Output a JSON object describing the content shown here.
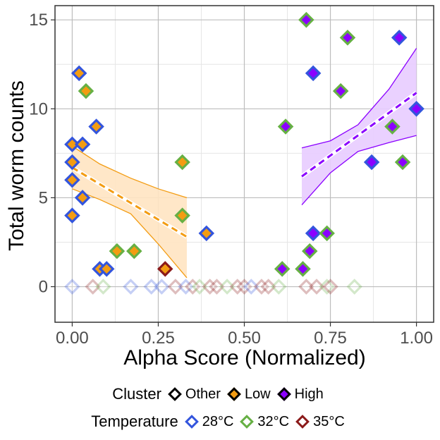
{
  "chart_data": {
    "type": "scatter",
    "xlabel": "Alpha Score (Normalized)",
    "ylabel": "Total worm counts",
    "xlim": [
      -0.05,
      1.05
    ],
    "ylim": [
      -2,
      15.8
    ],
    "x_ticks": [
      "0.00",
      "0.25",
      "0.50",
      "0.75",
      "1.00"
    ],
    "y_ticks": [
      "0",
      "5",
      "10",
      "15"
    ],
    "grid": true,
    "legend_position": "bottom",
    "legends": [
      {
        "title": "Cluster",
        "items": [
          {
            "label": "Other",
            "fill": "#ffffff"
          },
          {
            "label": "Low",
            "fill": "#f39c12"
          },
          {
            "label": "High",
            "fill": "#8b00ff"
          }
        ]
      },
      {
        "title": "Temperature",
        "items": [
          {
            "label": "28°C",
            "edge": "#3355dd"
          },
          {
            "label": "32°C",
            "edge": "#66b044"
          },
          {
            "label": "35°C",
            "edge": "#8b1a1a"
          }
        ]
      }
    ],
    "colors": {
      "Low": "#f39c12",
      "High": "#8b00ff",
      "Other": "#ffffff",
      "28°C": "#3355dd",
      "32°C": "#66b044",
      "35°C": "#8b1a1a"
    },
    "trends": [
      {
        "cluster": "Low",
        "x": [
          0,
          0.333
        ],
        "fit": [
          6.7,
          2.8
        ],
        "ci_x": [
          0,
          0.08,
          0.17,
          0.25,
          0.333
        ],
        "ci_upper": [
          7.9,
          6.9,
          6.1,
          5.5,
          5.0
        ],
        "ci_lower": [
          5.5,
          4.9,
          4.1,
          2.4,
          0.5
        ]
      },
      {
        "cluster": "High",
        "x": [
          0.667,
          1.0
        ],
        "fit": [
          6.2,
          10.9
        ],
        "ci_x": [
          0.667,
          0.75,
          0.83,
          0.92,
          1.0
        ],
        "ci_upper": [
          7.8,
          8.2,
          9.1,
          11.1,
          13.4
        ],
        "ci_lower": [
          4.6,
          6.4,
          7.6,
          8.1,
          8.5
        ]
      }
    ],
    "points": [
      {
        "x": 0.02,
        "y": 12,
        "cluster": "Low",
        "temp": "28°C"
      },
      {
        "x": 0.04,
        "y": 11,
        "cluster": "Low",
        "temp": "32°C"
      },
      {
        "x": 0.07,
        "y": 9,
        "cluster": "Low",
        "temp": "28°C"
      },
      {
        "x": 0.0,
        "y": 8,
        "cluster": "Low",
        "temp": "28°C"
      },
      {
        "x": 0.03,
        "y": 8,
        "cluster": "Low",
        "temp": "28°C"
      },
      {
        "x": 0.0,
        "y": 7,
        "cluster": "Low",
        "temp": "28°C"
      },
      {
        "x": 0.0,
        "y": 6,
        "cluster": "Low",
        "temp": "28°C"
      },
      {
        "x": 0.03,
        "y": 5,
        "cluster": "Low",
        "temp": "28°C"
      },
      {
        "x": 0.0,
        "y": 4,
        "cluster": "Low",
        "temp": "28°C"
      },
      {
        "x": 0.32,
        "y": 7,
        "cluster": "Low",
        "temp": "32°C"
      },
      {
        "x": 0.32,
        "y": 4,
        "cluster": "Low",
        "temp": "32°C"
      },
      {
        "x": 0.39,
        "y": 3,
        "cluster": "Low",
        "temp": "28°C"
      },
      {
        "x": 0.13,
        "y": 2,
        "cluster": "Low",
        "temp": "32°C"
      },
      {
        "x": 0.18,
        "y": 2,
        "cluster": "Low",
        "temp": "32°C"
      },
      {
        "x": 0.08,
        "y": 1,
        "cluster": "Low",
        "temp": "28°C"
      },
      {
        "x": 0.1,
        "y": 1,
        "cluster": "Low",
        "temp": "28°C"
      },
      {
        "x": 0.27,
        "y": 1,
        "cluster": "Low",
        "temp": "35°C"
      },
      {
        "x": 0.68,
        "y": 15,
        "cluster": "High",
        "temp": "32°C"
      },
      {
        "x": 0.8,
        "y": 14,
        "cluster": "High",
        "temp": "32°C"
      },
      {
        "x": 0.95,
        "y": 14,
        "cluster": "High",
        "temp": "28°C"
      },
      {
        "x": 0.7,
        "y": 12,
        "cluster": "High",
        "temp": "28°C"
      },
      {
        "x": 0.78,
        "y": 11,
        "cluster": "High",
        "temp": "32°C"
      },
      {
        "x": 1.0,
        "y": 10,
        "cluster": "High",
        "temp": "28°C"
      },
      {
        "x": 0.62,
        "y": 9,
        "cluster": "High",
        "temp": "32°C"
      },
      {
        "x": 0.93,
        "y": 9,
        "cluster": "High",
        "temp": "32°C"
      },
      {
        "x": 0.87,
        "y": 7,
        "cluster": "High",
        "temp": "28°C"
      },
      {
        "x": 0.96,
        "y": 7,
        "cluster": "High",
        "temp": "32°C"
      },
      {
        "x": 0.7,
        "y": 3,
        "cluster": "High",
        "temp": "28°C"
      },
      {
        "x": 0.74,
        "y": 3,
        "cluster": "High",
        "temp": "32°C"
      },
      {
        "x": 0.69,
        "y": 2,
        "cluster": "High",
        "temp": "32°C"
      },
      {
        "x": 0.61,
        "y": 1,
        "cluster": "High",
        "temp": "32°C"
      },
      {
        "x": 0.67,
        "y": 1,
        "cluster": "High",
        "temp": "32°C"
      },
      {
        "x": 0.0,
        "y": 0,
        "cluster": "Other",
        "temp": "28°C"
      },
      {
        "x": 0.06,
        "y": 0,
        "cluster": "Other",
        "temp": "35°C"
      },
      {
        "x": 0.09,
        "y": 0,
        "cluster": "Other",
        "temp": "32°C"
      },
      {
        "x": 0.17,
        "y": 0,
        "cluster": "Other",
        "temp": "28°C"
      },
      {
        "x": 0.23,
        "y": 0,
        "cluster": "Other",
        "temp": "28°C"
      },
      {
        "x": 0.26,
        "y": 0,
        "cluster": "Other",
        "temp": "28°C"
      },
      {
        "x": 0.3,
        "y": 0,
        "cluster": "Other",
        "temp": "35°C"
      },
      {
        "x": 0.33,
        "y": 0,
        "cluster": "Other",
        "temp": "28°C"
      },
      {
        "x": 0.35,
        "y": 0,
        "cluster": "Other",
        "temp": "35°C"
      },
      {
        "x": 0.37,
        "y": 0,
        "cluster": "Other",
        "temp": "32°C"
      },
      {
        "x": 0.4,
        "y": 0,
        "cluster": "Other",
        "temp": "35°C"
      },
      {
        "x": 0.42,
        "y": 0,
        "cluster": "Other",
        "temp": "35°C"
      },
      {
        "x": 0.45,
        "y": 0,
        "cluster": "Other",
        "temp": "32°C"
      },
      {
        "x": 0.48,
        "y": 0,
        "cluster": "Other",
        "temp": "35°C"
      },
      {
        "x": 0.5,
        "y": 0,
        "cluster": "Other",
        "temp": "35°C"
      },
      {
        "x": 0.52,
        "y": 0,
        "cluster": "Other",
        "temp": "28°C"
      },
      {
        "x": 0.55,
        "y": 0,
        "cluster": "Other",
        "temp": "35°C"
      },
      {
        "x": 0.57,
        "y": 0,
        "cluster": "Other",
        "temp": "35°C"
      },
      {
        "x": 0.6,
        "y": 0,
        "cluster": "Other",
        "temp": "32°C"
      },
      {
        "x": 0.68,
        "y": 0,
        "cluster": "Other",
        "temp": "35°C"
      },
      {
        "x": 0.71,
        "y": 0,
        "cluster": "Other",
        "temp": "35°C"
      },
      {
        "x": 0.74,
        "y": 0,
        "cluster": "Other",
        "temp": "32°C"
      },
      {
        "x": 0.75,
        "y": 0,
        "cluster": "Other",
        "temp": "35°C"
      },
      {
        "x": 0.82,
        "y": 0,
        "cluster": "Other",
        "temp": "32°C"
      }
    ]
  }
}
